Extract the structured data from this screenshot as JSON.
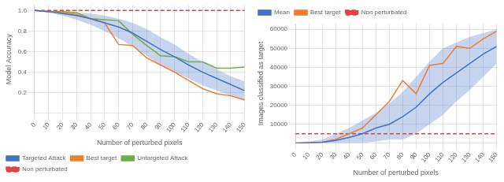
{
  "chart_data": [
    {
      "type": "line",
      "x": [
        0,
        10,
        20,
        30,
        40,
        50,
        60,
        70,
        80,
        90,
        100,
        110,
        120,
        130,
        140,
        150
      ],
      "xlabel": "Number of perturbed pixels",
      "ylabel": "Model Accuracy",
      "xlim": [
        0,
        150
      ],
      "xticks": [
        0,
        10,
        20,
        30,
        40,
        50,
        60,
        70,
        80,
        90,
        100,
        110,
        120,
        130,
        140,
        150
      ],
      "ylim": [
        0.0,
        1.05
      ],
      "yticks": [
        0.2,
        0.4,
        0.6,
        0.8,
        {
          "value": 1.0,
          "label": "1.0"
        }
      ],
      "grid": true,
      "legend": "lower left",
      "series": [
        {
          "name": "Targeted Attack",
          "color": "#4472C4",
          "values": [
            1.0,
            0.99,
            0.97,
            0.95,
            0.92,
            0.88,
            0.84,
            0.78,
            0.7,
            0.62,
            0.55,
            0.47,
            0.4,
            0.34,
            0.28,
            0.22
          ],
          "lower": [
            1.0,
            0.98,
            0.95,
            0.91,
            0.86,
            0.8,
            0.73,
            0.65,
            0.56,
            0.47,
            0.4,
            0.34,
            0.27,
            0.22,
            0.17,
            0.12
          ],
          "upper": [
            1.0,
            1.0,
            0.99,
            0.98,
            0.97,
            0.95,
            0.92,
            0.88,
            0.82,
            0.74,
            0.67,
            0.58,
            0.5,
            0.43,
            0.36,
            0.31
          ]
        },
        {
          "name": "Best target",
          "color": "#ED7D31",
          "values": [
            1.0,
            0.99,
            0.98,
            0.96,
            0.92,
            0.88,
            0.67,
            0.66,
            0.54,
            0.47,
            0.4,
            0.32,
            0.24,
            0.19,
            0.17,
            0.13
          ]
        },
        {
          "name": "Untargeted Attack",
          "color": "#70AD47",
          "values": [
            1.0,
            0.99,
            0.99,
            0.98,
            0.92,
            0.91,
            0.9,
            0.77,
            0.66,
            0.56,
            0.55,
            0.5,
            0.5,
            0.44,
            0.44,
            0.45
          ]
        },
        {
          "name": "Non perturbated",
          "color": "#e84040",
          "type": "hline",
          "line_style": "dashed",
          "value": 1.0
        }
      ]
    },
    {
      "type": "line",
      "x": [
        0,
        10,
        20,
        30,
        40,
        50,
        60,
        70,
        80,
        90,
        100,
        110,
        120,
        130,
        140,
        150
      ],
      "xlabel": "Number of perturbed pixels",
      "ylabel": "Images classified as target",
      "xlim": [
        0,
        150
      ],
      "xticks": [
        0,
        10,
        20,
        30,
        40,
        50,
        60,
        70,
        80,
        90,
        100,
        110,
        120,
        130,
        140,
        150
      ],
      "ylim": [
        0,
        63000
      ],
      "yticks": [
        10000,
        20000,
        30000,
        40000,
        50000,
        60000
      ],
      "grid": true,
      "legend": "upper left",
      "series": [
        {
          "name": "Mean",
          "color": "#4472C4",
          "values": [
            0,
            200,
            500,
            1500,
            3000,
            5000,
            8000,
            10000,
            14000,
            19000,
            26000,
            32000,
            37000,
            42000,
            47000,
            51000
          ],
          "lower": [
            0,
            0,
            0,
            0,
            0,
            0,
            1000,
            2000,
            2000,
            5000,
            10000,
            15000,
            22000,
            28000,
            35000,
            42000
          ],
          "upper": [
            500,
            1000,
            2000,
            5000,
            8000,
            12000,
            16000,
            21000,
            27000,
            35000,
            43000,
            50000,
            53000,
            56000,
            58000,
            60000
          ]
        },
        {
          "name": "Best target",
          "color": "#ED7D31",
          "values": [
            0,
            200,
            500,
            2000,
            5000,
            8000,
            15000,
            22000,
            33000,
            26000,
            41000,
            42000,
            51000,
            50000,
            55000,
            59000
          ]
        },
        {
          "name": "Non perturbated",
          "color": "#e84040",
          "type": "hline",
          "line_style": "dashed",
          "value": 5000
        }
      ]
    }
  ]
}
